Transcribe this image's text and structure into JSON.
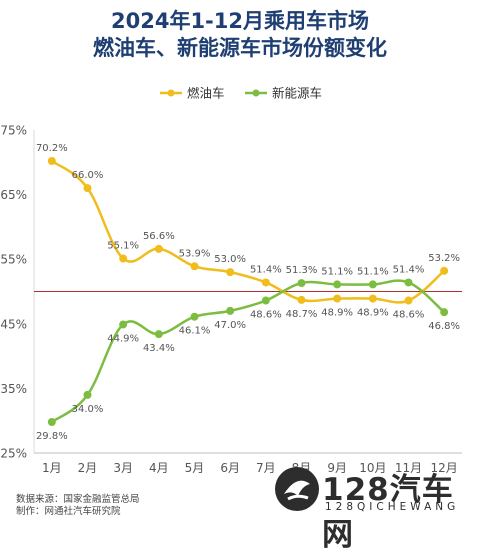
{
  "title_line1": "2024年1-12月乘用车市场",
  "title_line2": "燃油车、新能源车市场份额变化",
  "source_line1": "数据来源：国家金融监管总局",
  "source_line2": "制作：网通社汽车研究院",
  "logo": {
    "main": "128汽车网",
    "sub": "128QICHEWANG"
  },
  "chart_data": {
    "type": "line",
    "categories": [
      "1月",
      "2月",
      "3月",
      "4月",
      "5月",
      "6月",
      "7月",
      "8月",
      "9月",
      "10月",
      "11月",
      "12月"
    ],
    "ylim": [
      25,
      75
    ],
    "yticks": [
      "25%",
      "35%",
      "45%",
      "55%",
      "65%",
      "75%"
    ],
    "yticks_values": [
      25,
      35,
      45,
      55,
      65,
      75
    ],
    "reference_line": 50,
    "legend_position": "top",
    "series": [
      {
        "name": "燃油车",
        "color": "#f0bd1c",
        "values": [
          70.2,
          66.0,
          55.1,
          56.6,
          53.9,
          53.0,
          51.4,
          48.7,
          48.9,
          48.9,
          48.6,
          53.2
        ],
        "labels": [
          "70.2%",
          "66.0%",
          "55.1%",
          "56.6%",
          "53.9%",
          "53.0%",
          "51.4%",
          "48.7%",
          "48.9%",
          "48.9%",
          "48.6%",
          "53.2%"
        ]
      },
      {
        "name": "新能源车",
        "color": "#7cbd41",
        "values": [
          29.8,
          34.0,
          44.9,
          43.4,
          46.1,
          47.0,
          48.6,
          51.3,
          51.1,
          51.1,
          51.4,
          46.8
        ],
        "labels": [
          "29.8%",
          "34.0%",
          "44.9%",
          "43.4%",
          "46.1%",
          "47.0%",
          "48.6%",
          "51.3%",
          "51.1%",
          "51.1%",
          "51.4%",
          "46.8%"
        ]
      }
    ]
  }
}
